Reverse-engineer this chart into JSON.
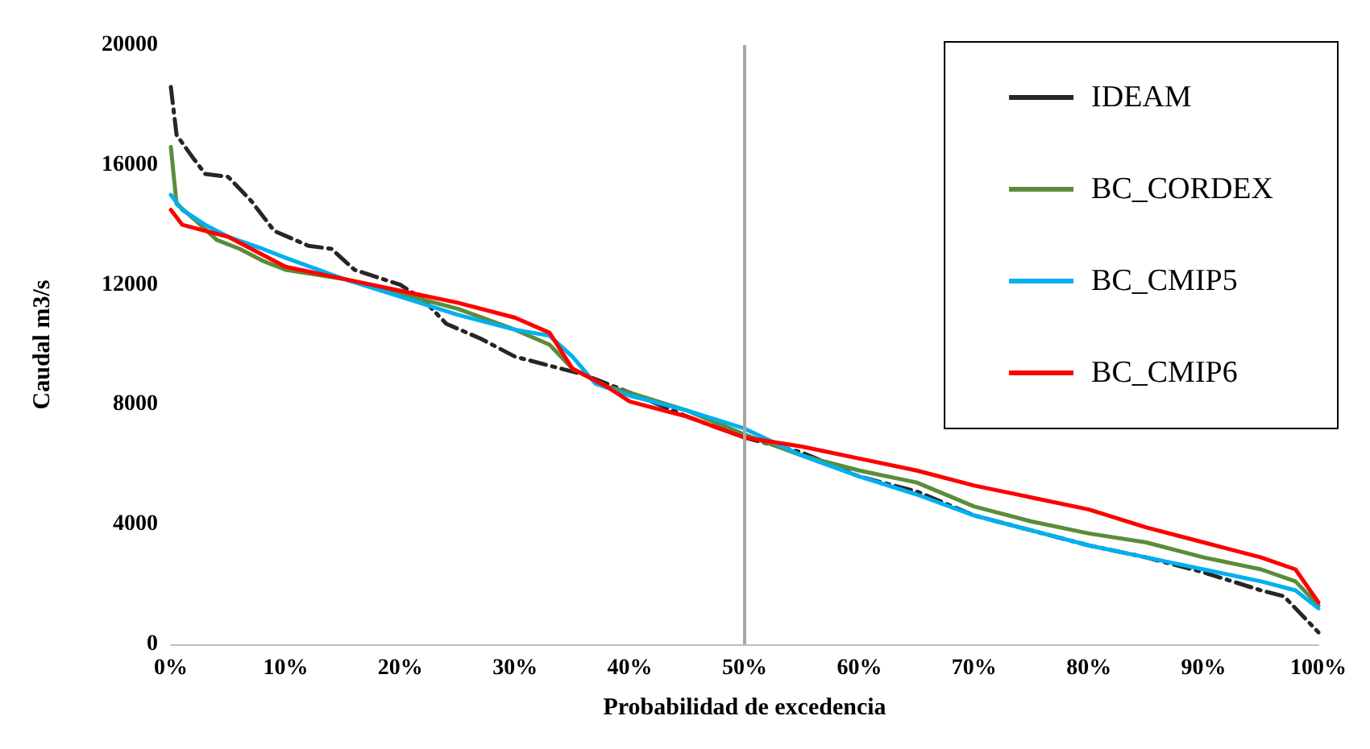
{
  "chart_data": {
    "type": "line",
    "xlabel": "Probabilidad de excedencia",
    "ylabel": "Caudal m3/s",
    "xlim": [
      0,
      100
    ],
    "xticks": [
      {
        "value": 0,
        "label": "0%"
      },
      {
        "value": 10,
        "label": "10%"
      },
      {
        "value": 20,
        "label": "20%"
      },
      {
        "value": 30,
        "label": "30%"
      },
      {
        "value": 40,
        "label": "40%"
      },
      {
        "value": 50,
        "label": "50%"
      },
      {
        "value": 60,
        "label": "60%"
      },
      {
        "value": 70,
        "label": "70%"
      },
      {
        "value": 80,
        "label": "80%"
      },
      {
        "value": 90,
        "label": "90%"
      },
      {
        "value": 100,
        "label": "100%"
      }
    ],
    "ylim": [
      0,
      20000
    ],
    "yticks": [
      0,
      4000,
      8000,
      12000,
      16000,
      20000
    ],
    "grid": false,
    "legend": "top right",
    "marker": "none",
    "ref_lines": [
      {
        "axis": "x",
        "value": 50,
        "color": "#a6a6a6",
        "line_style": "solid"
      }
    ],
    "series": [
      {
        "name": "IDEAM",
        "color": "#262626",
        "line_style": "dashed",
        "x": [
          0,
          0.5,
          2,
          3,
          5,
          7,
          9,
          12,
          14,
          16,
          20,
          22,
          24,
          27,
          30,
          33,
          36,
          40,
          45,
          50,
          55,
          60,
          65,
          70,
          75,
          80,
          85,
          90,
          95,
          97,
          100
        ],
        "values": [
          18600,
          17000,
          16200,
          15700,
          15600,
          14800,
          13800,
          13300,
          13200,
          12500,
          12000,
          11500,
          10700,
          10200,
          9600,
          9300,
          9000,
          8400,
          7600,
          6900,
          6400,
          5600,
          5100,
          4300,
          3800,
          3300,
          2900,
          2400,
          1800,
          1600,
          400
        ]
      },
      {
        "name": "BC_CORDEX",
        "color": "#5b8c3a",
        "line_style": "solid",
        "x": [
          0,
          0.5,
          2,
          4,
          6,
          8,
          10,
          15,
          20,
          25,
          30,
          33,
          35,
          38,
          40,
          45,
          50,
          55,
          60,
          65,
          70,
          75,
          80,
          85,
          90,
          95,
          98,
          100
        ],
        "values": [
          16600,
          14700,
          14200,
          13500,
          13200,
          12800,
          12500,
          12200,
          11700,
          11200,
          10500,
          10000,
          9200,
          8600,
          8400,
          7800,
          7000,
          6300,
          5800,
          5400,
          4600,
          4100,
          3700,
          3400,
          2900,
          2500,
          2100,
          1300
        ]
      },
      {
        "name": "BC_CMIP5",
        "color": "#00b0f0",
        "line_style": "solid",
        "x": [
          0,
          1,
          3,
          5,
          8,
          10,
          15,
          20,
          25,
          30,
          33,
          35,
          37,
          40,
          45,
          50,
          55,
          60,
          65,
          70,
          75,
          80,
          85,
          90,
          95,
          98,
          100
        ],
        "values": [
          15000,
          14500,
          14000,
          13600,
          13200,
          12900,
          12200,
          11600,
          11000,
          10500,
          10300,
          9600,
          8700,
          8300,
          7800,
          7200,
          6300,
          5600,
          5000,
          4300,
          3800,
          3300,
          2900,
          2500,
          2100,
          1800,
          1200
        ]
      },
      {
        "name": "BC_CMIP6",
        "color": "#ff0000",
        "line_style": "solid",
        "x": [
          0,
          1,
          5,
          10,
          15,
          20,
          25,
          30,
          33,
          35,
          38,
          40,
          45,
          50,
          55,
          60,
          65,
          70,
          75,
          80,
          85,
          90,
          95,
          98,
          100
        ],
        "values": [
          14500,
          14000,
          13600,
          12600,
          12200,
          11800,
          11400,
          10900,
          10400,
          9200,
          8600,
          8100,
          7600,
          6900,
          6600,
          6200,
          5800,
          5300,
          4900,
          4500,
          3900,
          3400,
          2900,
          2500,
          1400
        ]
      }
    ]
  }
}
